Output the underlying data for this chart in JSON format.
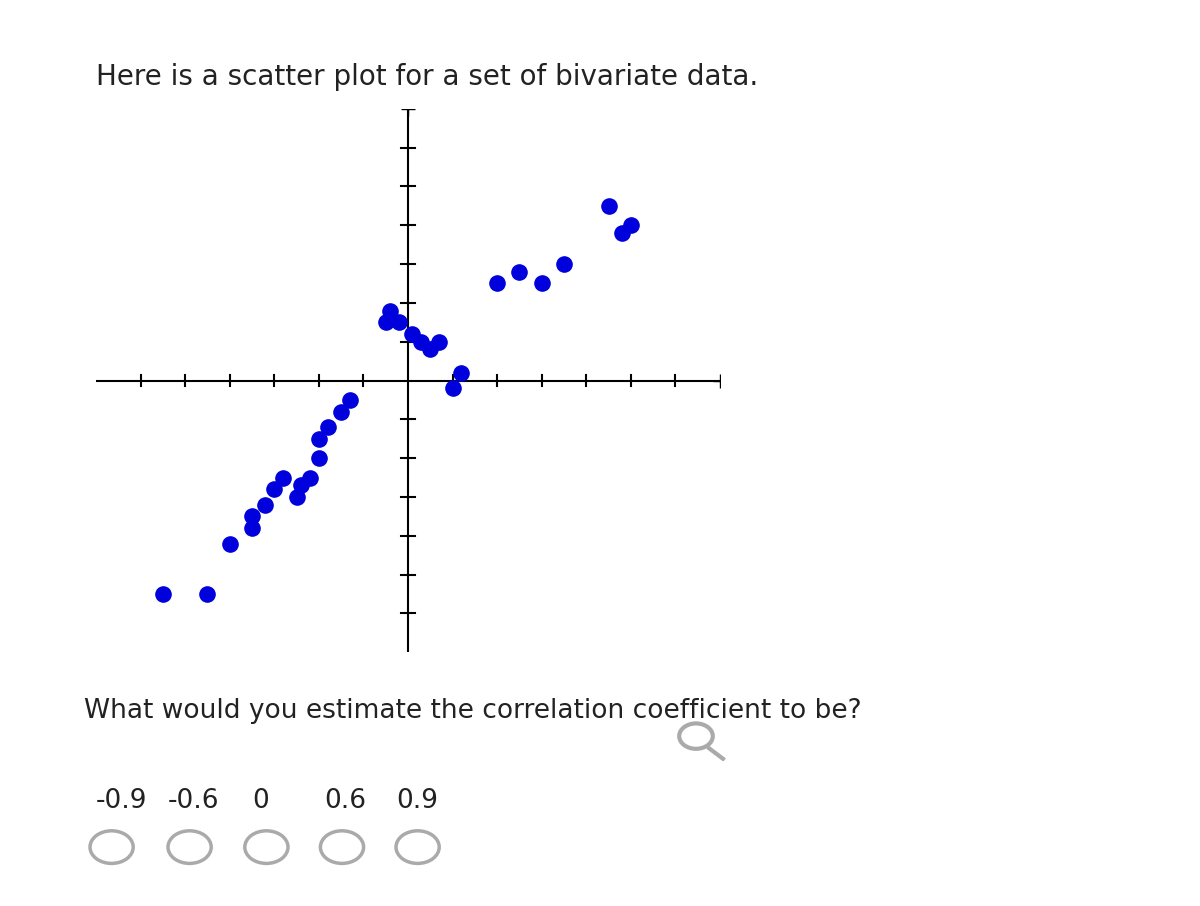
{
  "title": "Here is a scatter plot for a set of bivariate data.",
  "title_fontsize": 20,
  "question": "What would you estimate the correlation coefficient to be?",
  "question_fontsize": 19,
  "options": [
    "-0.9",
    "-0.6",
    "0",
    "0.6",
    "0.9"
  ],
  "options_fontsize": 19,
  "dot_color": "#0000dd",
  "dot_size": 120,
  "axis_color": "#000000",
  "tick_color": "#000000",
  "radio_color": "#aaaaaa",
  "background_color": "#ffffff",
  "xlim": [
    -7,
    7
  ],
  "ylim": [
    -7,
    7
  ],
  "xtick_positions": [
    -6,
    -5,
    -4,
    -3,
    -2,
    -1,
    1,
    2,
    3,
    4,
    5,
    6
  ],
  "ytick_positions": [
    -6,
    -5,
    -4,
    -3,
    -2,
    -1,
    1,
    2,
    3,
    4,
    5,
    6
  ],
  "scatter_x": [
    -5.5,
    -4.5,
    -4.0,
    -3.5,
    -3.5,
    -3.2,
    -3.0,
    -2.8,
    -2.5,
    -2.4,
    -2.2,
    -2.0,
    -2.0,
    -1.8,
    -1.5,
    -1.3,
    -0.5,
    -0.4,
    -0.2,
    0.1,
    0.3,
    0.5,
    0.7,
    1.0,
    1.2,
    2.0,
    2.5,
    3.0,
    3.5,
    4.5,
    4.8,
    5.0
  ],
  "scatter_y": [
    -5.5,
    -5.5,
    -4.2,
    -3.8,
    -3.5,
    -3.2,
    -2.8,
    -2.5,
    -3.0,
    -2.7,
    -2.5,
    -2.0,
    -1.5,
    -1.2,
    -0.8,
    -0.5,
    1.5,
    1.8,
    1.5,
    1.2,
    1.0,
    0.8,
    1.0,
    -0.2,
    0.2,
    2.5,
    2.8,
    2.5,
    3.0,
    4.5,
    3.8,
    4.0
  ]
}
